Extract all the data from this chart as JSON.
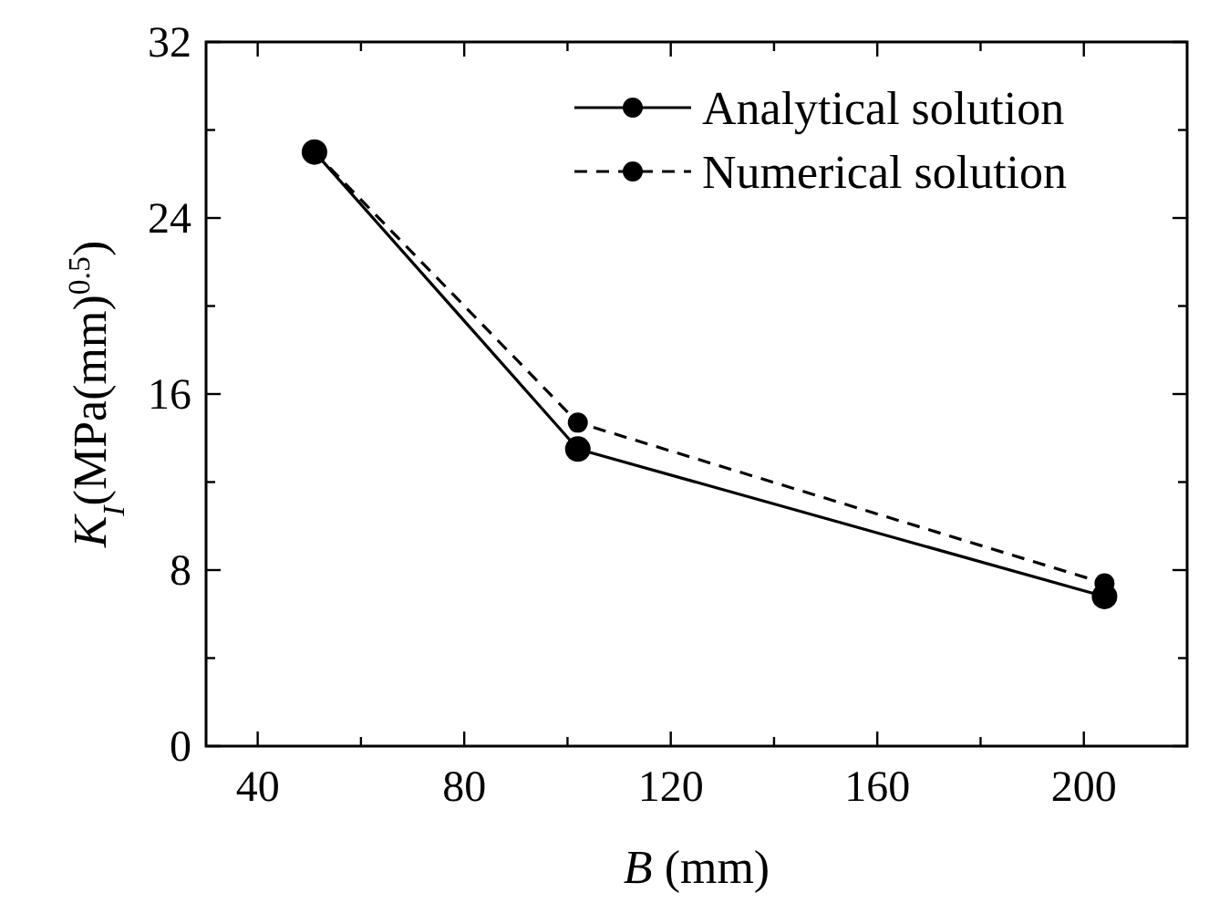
{
  "chart_data": {
    "type": "line",
    "xlabel": "B (mm)",
    "ylabel": "K$_{I}$(MPa(mm)$^{0.5}$)",
    "x": [
      51,
      102,
      204
    ],
    "series": [
      {
        "name": "Analytical solution",
        "color": "#000000",
        "values": [
          27,
          13.5,
          6.8
        ],
        "line_style": "solid"
      },
      {
        "name": "Numerical solution",
        "color": "#000000",
        "values": [
          27,
          14.7,
          7.4
        ],
        "line_style": "dashed"
      }
    ],
    "xlim": [
      30,
      220
    ],
    "xticks": [
      40,
      {
        "value": 60,
        "label": null
      },
      80,
      {
        "value": 100,
        "label": null
      },
      120,
      {
        "value": 140,
        "label": null
      },
      160,
      {
        "value": 180,
        "label": null
      },
      200
    ],
    "ylim": [
      0,
      32
    ],
    "yticks": [
      0,
      {
        "value": 4,
        "label": null
      },
      8,
      {
        "value": 12,
        "label": null
      },
      16,
      {
        "value": 20,
        "label": null
      },
      24,
      {
        "value": 28,
        "label": null
      },
      32
    ],
    "marker": "circle",
    "grid": false,
    "legend": "top right"
  }
}
